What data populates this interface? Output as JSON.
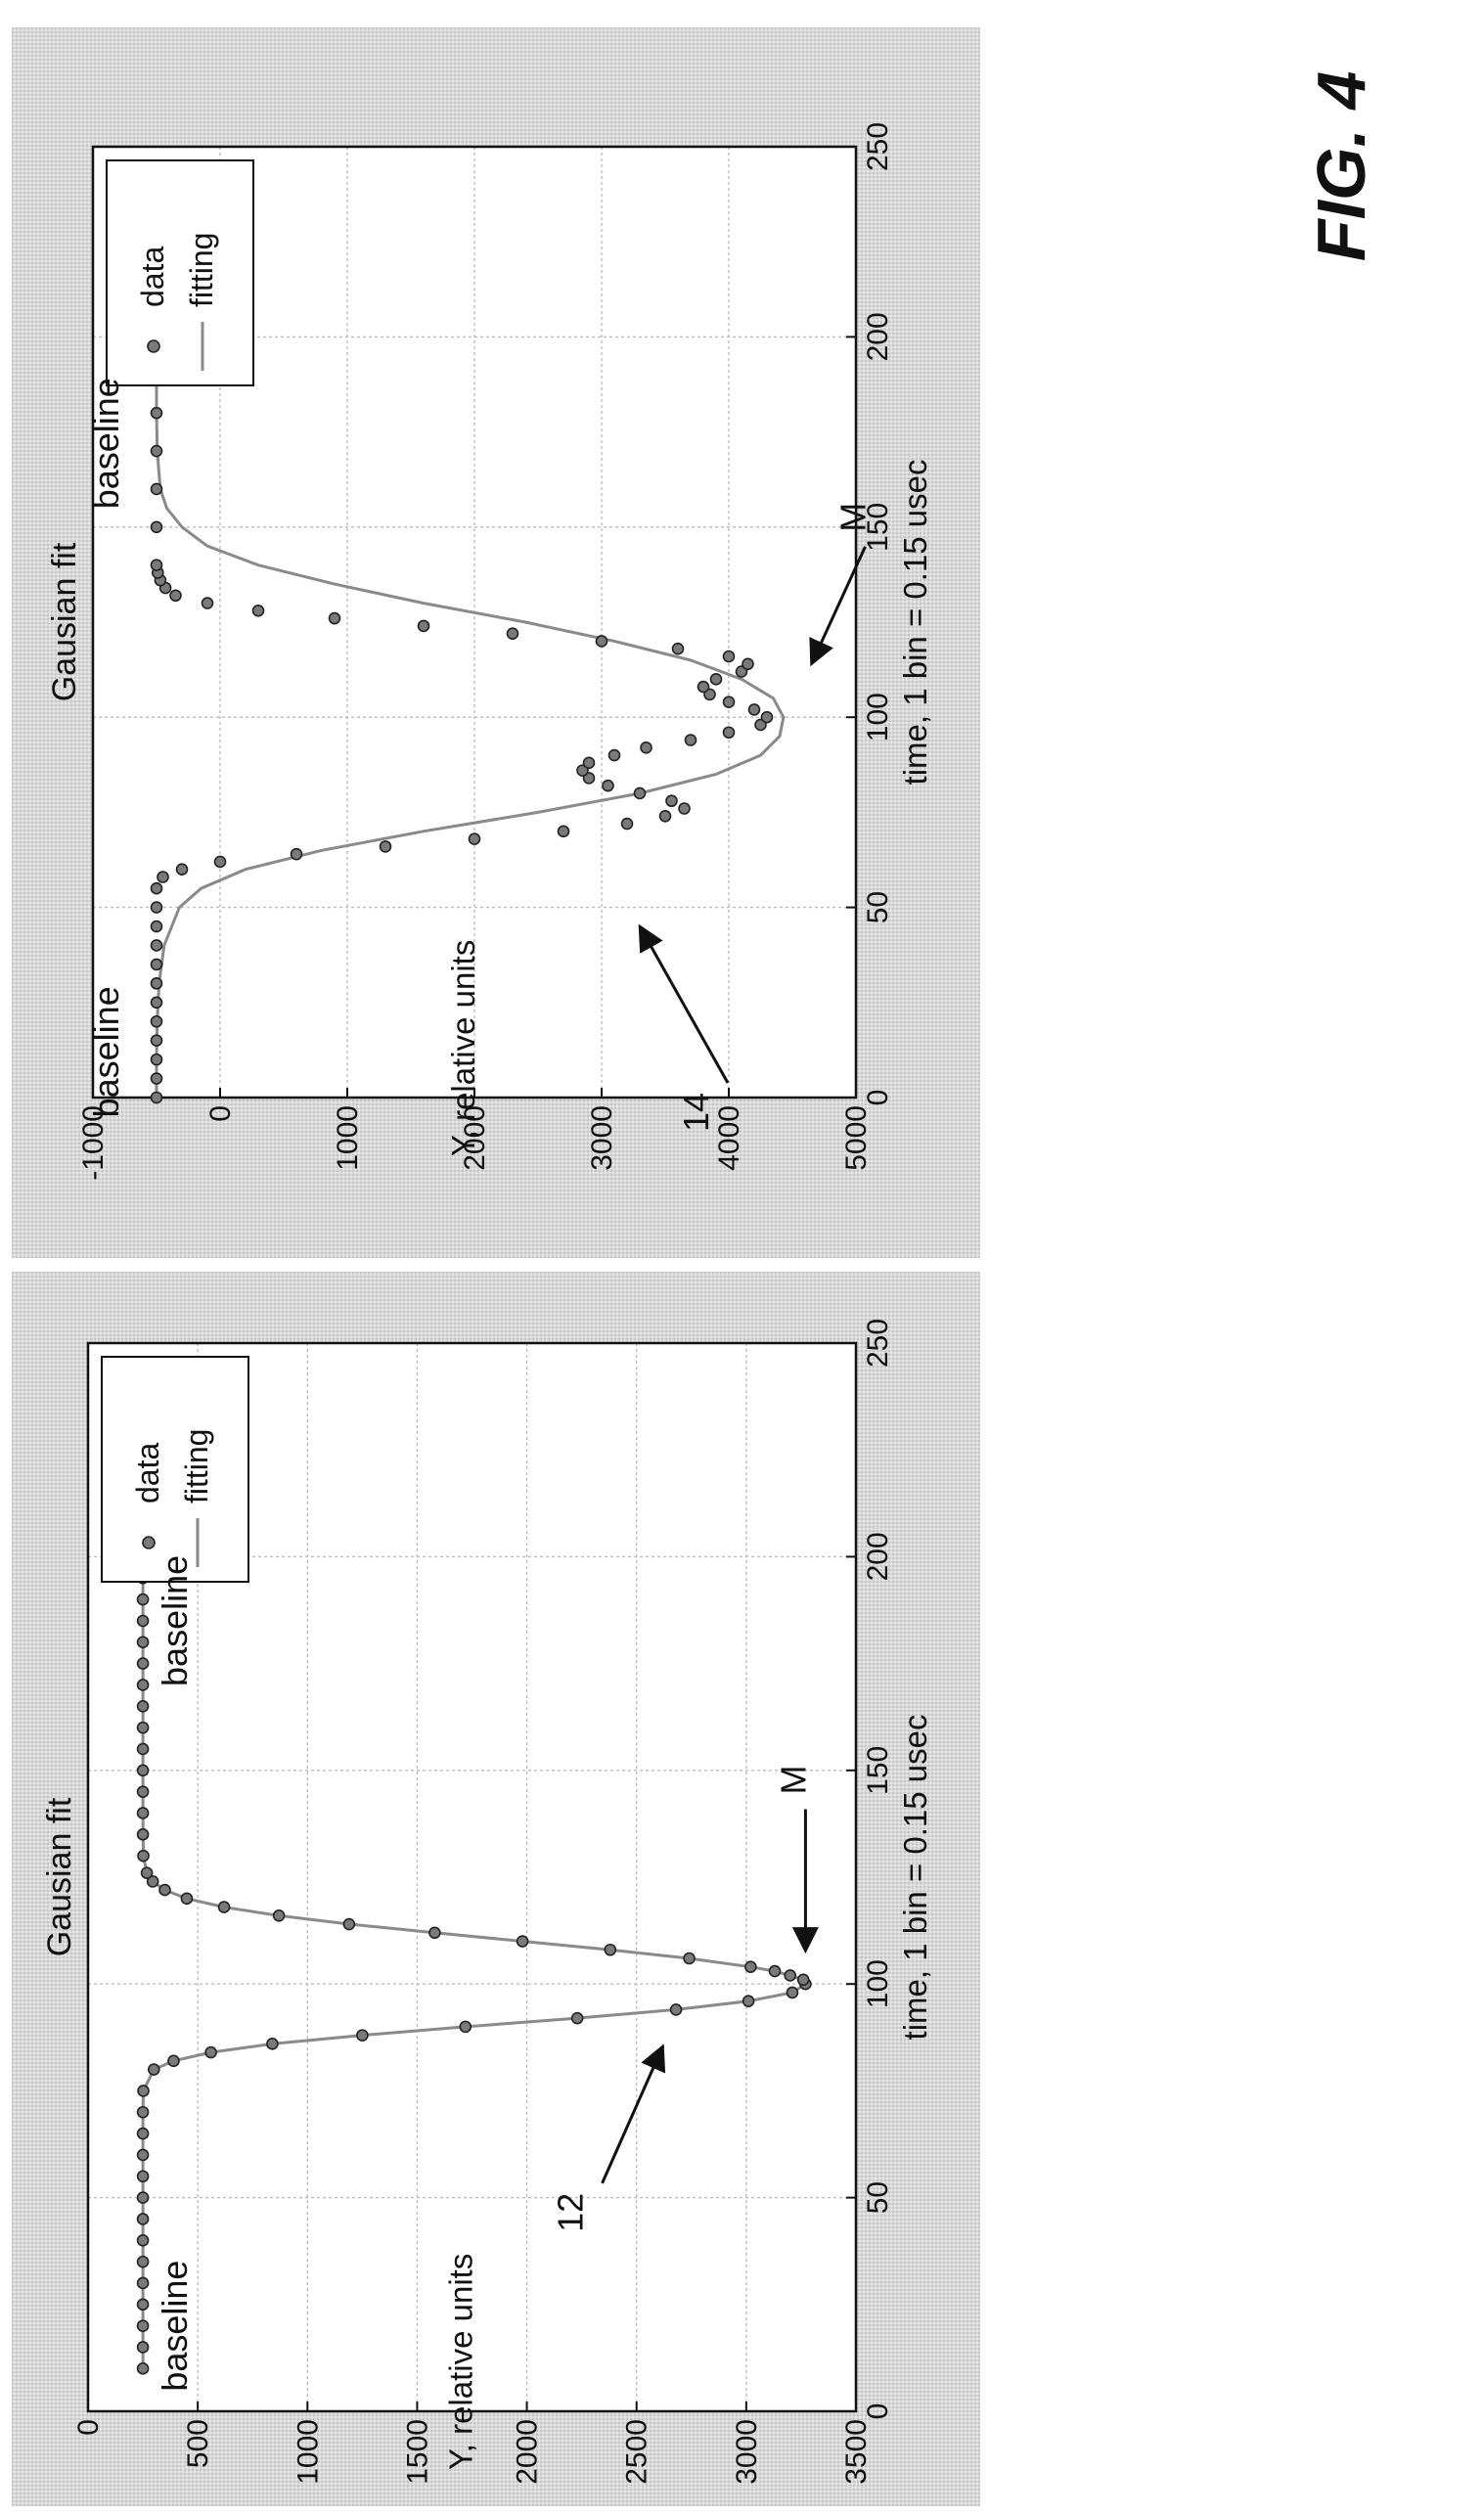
{
  "figure_label": "FIG. 4",
  "chart_data": [
    {
      "type": "scatter",
      "title": "Gausian fit",
      "xlabel": "time, 1 bin = 0.15 usec",
      "ylabel": "Y, relative units",
      "xlim": [
        0,
        250
      ],
      "ylim": [
        0,
        3500
      ],
      "xticks": [
        0,
        50,
        100,
        150,
        200,
        250
      ],
      "yticks": [
        0,
        500,
        1000,
        1500,
        2000,
        2500,
        3000,
        3500
      ],
      "xtick_labels": [
        "0",
        "50",
        "100",
        "150",
        "200",
        "250"
      ],
      "ytick_labels": [
        "0",
        "500",
        "1000",
        "1500",
        "2000",
        "2500",
        "3000",
        "3500"
      ],
      "grid": true,
      "legend": {
        "placement": "top-right",
        "entries": [
          "data",
          "fitting"
        ]
      },
      "annotations": [
        {
          "text": "M",
          "x": 102,
          "y": 3270
        },
        {
          "text": "12",
          "x": 90,
          "y": 2700
        },
        {
          "text": "baseline",
          "x": 20,
          "y": 450
        },
        {
          "text": "baseline",
          "x": 185,
          "y": 450
        }
      ],
      "series": [
        {
          "name": "data",
          "x": [
            10,
            15,
            20,
            25,
            30,
            35,
            40,
            45,
            50,
            55,
            60,
            65,
            70,
            75,
            80,
            82,
            84,
            86,
            88,
            90,
            92,
            94,
            96,
            98,
            100,
            101,
            102,
            103,
            104,
            106,
            108,
            110,
            112,
            114,
            116,
            118,
            120,
            122,
            124,
            126,
            130,
            135,
            140,
            145,
            150,
            155,
            160,
            165,
            170,
            175,
            180,
            185,
            190,
            195,
            200
          ],
          "y": [
            250,
            250,
            250,
            250,
            250,
            250,
            250,
            250,
            250,
            250,
            250,
            250,
            250,
            252,
            300,
            390,
            560,
            840,
            1250,
            1720,
            2230,
            2680,
            3010,
            3210,
            3270,
            3260,
            3200,
            3130,
            3020,
            2740,
            2380,
            1980,
            1580,
            1190,
            870,
            620,
            450,
            350,
            295,
            268,
            252,
            250,
            250,
            250,
            250,
            250,
            250,
            250,
            250,
            250,
            250,
            250,
            250,
            250,
            250
          ]
        },
        {
          "name": "fitting",
          "x": [
            10,
            20,
            30,
            40,
            50,
            60,
            70,
            75,
            80,
            82,
            84,
            86,
            88,
            90,
            92,
            94,
            96,
            98,
            100,
            101,
            102,
            103,
            104,
            106,
            108,
            110,
            112,
            114,
            116,
            118,
            120,
            122,
            124,
            126,
            130,
            140,
            150,
            160,
            170,
            180,
            190,
            200
          ],
          "y": [
            250,
            250,
            250,
            250,
            250,
            250,
            250,
            252,
            300,
            390,
            560,
            840,
            1250,
            1720,
            2230,
            2680,
            3010,
            3210,
            3270,
            3260,
            3200,
            3130,
            3020,
            2740,
            2380,
            1980,
            1580,
            1190,
            870,
            620,
            450,
            350,
            295,
            268,
            252,
            250,
            250,
            250,
            250,
            250,
            250,
            250
          ]
        }
      ]
    },
    {
      "type": "scatter",
      "title": "Gausian fit",
      "xlabel": "time, 1 bin = 0.15 usec",
      "ylabel": "Y, relative units",
      "xlim": [
        0,
        250
      ],
      "ylim": [
        -1000,
        5000
      ],
      "xticks": [
        0,
        50,
        100,
        150,
        200,
        250
      ],
      "yticks": [
        -1000,
        0,
        1000,
        2000,
        3000,
        4000,
        5000
      ],
      "xtick_labels": [
        "0",
        "50",
        "100",
        "150",
        "200",
        "250"
      ],
      "ytick_labels": [
        "-1000",
        "0",
        "1000",
        "2000",
        "3000",
        "4000",
        "5000"
      ],
      "grid": true,
      "legend": {
        "placement": "top-right",
        "entries": [
          "data",
          "fitting"
        ]
      },
      "annotations": [
        {
          "text": "M",
          "x": 114,
          "y": 4650
        },
        {
          "text": "14",
          "x": 45,
          "y": 3300
        },
        {
          "text": "baseline",
          "x": 12,
          "y": -800
        },
        {
          "text": "baseline",
          "x": 172,
          "y": -800
        }
      ],
      "series": [
        {
          "name": "data",
          "x": [
            0,
            5,
            10,
            15,
            20,
            25,
            30,
            35,
            40,
            45,
            50,
            55,
            58,
            60,
            62,
            64,
            66,
            68,
            70,
            72,
            74,
            76,
            78,
            80,
            82,
            84,
            86,
            88,
            90,
            92,
            94,
            96,
            98,
            100,
            102,
            104,
            106,
            108,
            110,
            112,
            114,
            116,
            118,
            120,
            122,
            124,
            126,
            128,
            130,
            132,
            134,
            136,
            138,
            140,
            150,
            160,
            170,
            180,
            190,
            200
          ],
          "y": [
            -500,
            -500,
            -500,
            -500,
            -500,
            -500,
            -500,
            -500,
            -500,
            -500,
            -500,
            -500,
            -450,
            -300,
            0,
            600,
            1300,
            2000,
            2700,
            3200,
            3500,
            3650,
            3550,
            3300,
            3050,
            2900,
            2850,
            2900,
            3100,
            3350,
            3700,
            4000,
            4250,
            4300,
            4200,
            4000,
            3850,
            3800,
            3900,
            4100,
            4150,
            4000,
            3600,
            3000,
            2300,
            1600,
            900,
            300,
            -100,
            -350,
            -430,
            -470,
            -490,
            -500,
            -500,
            -500,
            -500,
            -500,
            -500,
            -500
          ]
        },
        {
          "name": "fitting",
          "x": [
            0,
            10,
            20,
            30,
            40,
            50,
            55,
            60,
            65,
            70,
            75,
            80,
            85,
            90,
            95,
            100,
            105,
            110,
            115,
            120,
            125,
            130,
            135,
            140,
            145,
            150,
            155,
            160,
            170,
            180,
            190,
            200
          ],
          "y": [
            -500,
            -500,
            -495,
            -480,
            -440,
            -320,
            -150,
            200,
            800,
            1600,
            2500,
            3300,
            3900,
            4250,
            4400,
            4430,
            4350,
            4100,
            3700,
            3100,
            2400,
            1600,
            900,
            300,
            -100,
            -300,
            -420,
            -470,
            -495,
            -500,
            -500,
            -500
          ]
        }
      ]
    }
  ]
}
